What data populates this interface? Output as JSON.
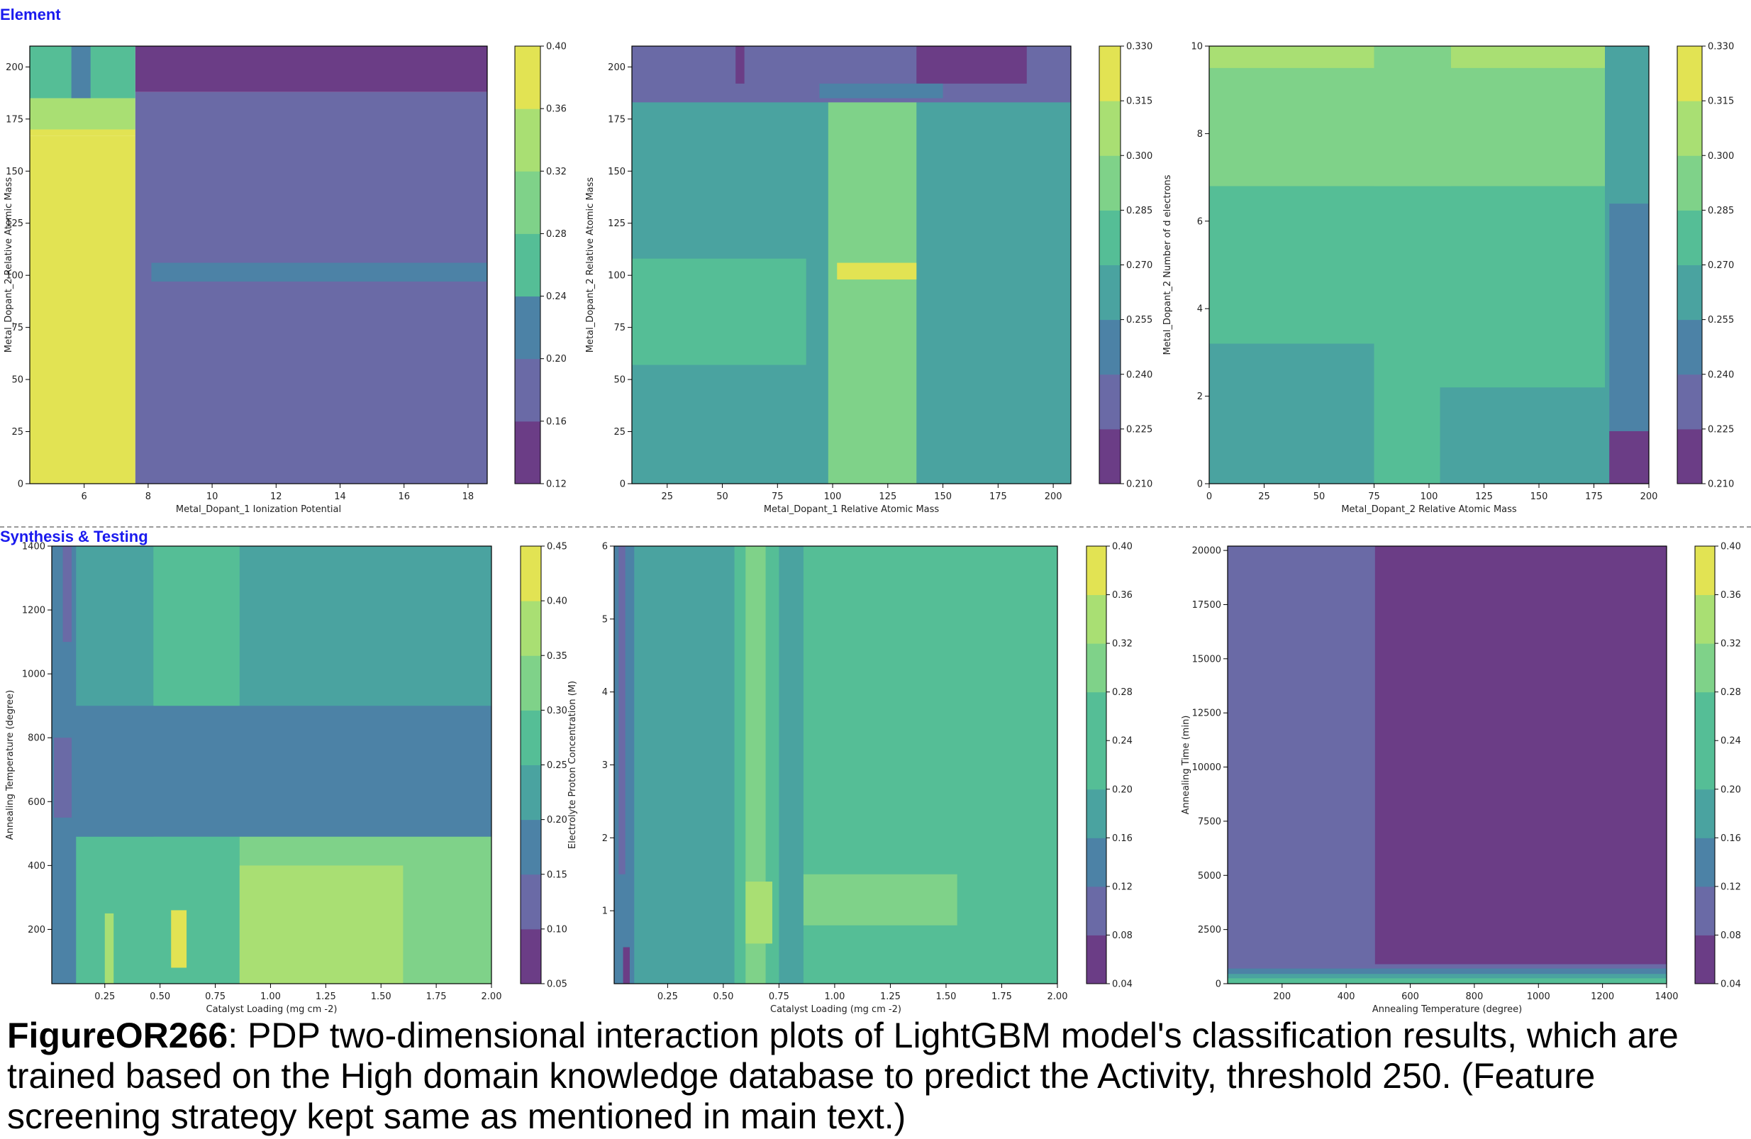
{
  "sections": {
    "top": "Element",
    "bottom": "Synthesis & Testing"
  },
  "caption": {
    "id": "FigureOR266",
    "text": ": PDP two-dimensional interaction plots of LightGBM model's classification results, which are trained based on the High domain knowledge database to predict the Activity, threshold 250. (Feature screening strategy kept same as mentioned in main text.)"
  },
  "colors": {
    "palette_low_to_high": [
      "#6b3d86",
      "#6a6aa6",
      "#4c82a6",
      "#4aa3a0",
      "#55be96",
      "#7fd289",
      "#a9df73",
      "#e2e353"
    ]
  },
  "chart_data": [
    {
      "type": "contour",
      "xlabel": "Metal_Dopant_1 Ionization Potential",
      "ylabel": "Metal_Dopant_2 Relative Atomic Mass",
      "xlim": [
        4.3,
        18.6
      ],
      "ylim": [
        0,
        210
      ],
      "xticks": [
        6,
        8,
        10,
        12,
        14,
        16,
        18
      ],
      "xticklabels": [
        "6",
        "8",
        "10",
        "12",
        "14",
        "16",
        "18"
      ],
      "yticks": [
        0,
        25,
        50,
        75,
        100,
        125,
        150,
        175,
        200
      ],
      "yticklabels": [
        "0",
        "25",
        "50",
        "75",
        "100",
        "125",
        "150",
        "175",
        "200"
      ],
      "colorbar": {
        "levels": [
          0.12,
          0.16,
          0.2,
          0.24,
          0.28,
          0.32,
          0.36,
          0.4
        ],
        "labels": [
          "0.12",
          "0.16",
          "0.20",
          "0.24",
          "0.28",
          "0.32",
          "0.36",
          "0.40"
        ]
      },
      "regions": [
        {
          "x": [
            4.3,
            7.6
          ],
          "y": [
            0,
            167
          ],
          "level": 7
        },
        {
          "x": [
            4.3,
            7.6
          ],
          "y": [
            167,
            170
          ],
          "level": 6
        },
        {
          "x": [
            4.3,
            7.6
          ],
          "y": [
            170,
            185
          ],
          "level": 5
        },
        {
          "x": [
            4.3,
            7.6
          ],
          "y": [
            185,
            210
          ],
          "level": 3
        },
        {
          "x": [
            5.6,
            6.2
          ],
          "y": [
            185,
            210
          ],
          "level": 2
        },
        {
          "x": [
            7.6,
            18.6
          ],
          "y": [
            0,
            188
          ],
          "level": 1
        },
        {
          "x": [
            7.6,
            18.6
          ],
          "y": [
            188,
            210
          ],
          "level": 0
        },
        {
          "x": [
            8.1,
            18.6
          ],
          "y": [
            97,
            106
          ],
          "level": 2
        }
      ]
    },
    {
      "type": "contour",
      "xlabel": "Metal_Dopant_1 Relative Atomic Mass",
      "ylabel": "Metal_Dopant_2 Relative Atomic Mass",
      "xlim": [
        9,
        208
      ],
      "ylim": [
        0,
        210
      ],
      "xticks": [
        25,
        50,
        75,
        100,
        125,
        150,
        175,
        200
      ],
      "xticklabels": [
        "25",
        "50",
        "75",
        "100",
        "125",
        "150",
        "175",
        "200"
      ],
      "yticks": [
        0,
        25,
        50,
        75,
        100,
        125,
        150,
        175,
        200
      ],
      "yticklabels": [
        "0",
        "25",
        "50",
        "75",
        "100",
        "125",
        "150",
        "175",
        "200"
      ],
      "colorbar": {
        "levels": [
          0.21,
          0.225,
          0.24,
          0.255,
          0.27,
          0.285,
          0.3,
          0.315,
          0.33
        ],
        "labels": [
          "0.210",
          "0.225",
          "0.240",
          "0.255",
          "0.270",
          "0.285",
          "0.300",
          "0.315",
          "0.330"
        ]
      },
      "regions": [
        {
          "x": [
            9,
            208
          ],
          "y": [
            0,
            210
          ],
          "level": 3
        },
        {
          "x": [
            9,
            88
          ],
          "y": [
            57,
            108
          ],
          "level": 4
        },
        {
          "x": [
            138,
            208
          ],
          "y": [
            100,
            108
          ],
          "level": 3
        },
        {
          "x": [
            98,
            138
          ],
          "y": [
            0,
            185
          ],
          "level": 5
        },
        {
          "x": [
            102,
            138
          ],
          "y": [
            98,
            106
          ],
          "level": 7
        },
        {
          "x": [
            9,
            208
          ],
          "y": [
            183,
            210
          ],
          "level": 1
        },
        {
          "x": [
            56,
            60
          ],
          "y": [
            192,
            210
          ],
          "level": 0
        },
        {
          "x": [
            138,
            188
          ],
          "y": [
            192,
            210
          ],
          "level": 0
        },
        {
          "x": [
            94,
            150
          ],
          "y": [
            185,
            192
          ],
          "level": 2
        }
      ]
    },
    {
      "type": "contour",
      "xlabel": "Metal_Dopant_2 Relative Atomic Mass",
      "ylabel": "Metal_Dopant_2 Number of d electrons",
      "xlim": [
        0,
        200
      ],
      "ylim": [
        0,
        10
      ],
      "xticks": [
        0,
        25,
        50,
        75,
        100,
        125,
        150,
        175,
        200
      ],
      "xticklabels": [
        "0",
        "25",
        "50",
        "75",
        "100",
        "125",
        "150",
        "175",
        "200"
      ],
      "yticks": [
        0,
        2,
        4,
        6,
        8,
        10
      ],
      "yticklabels": [
        "0",
        "2",
        "4",
        "6",
        "8",
        "10"
      ],
      "colorbar": {
        "levels": [
          0.21,
          0.225,
          0.24,
          0.255,
          0.27,
          0.285,
          0.3,
          0.315,
          0.33
        ],
        "labels": [
          "0.210",
          "0.225",
          "0.240",
          "0.255",
          "0.270",
          "0.285",
          "0.300",
          "0.315",
          "0.330"
        ]
      },
      "regions": [
        {
          "x": [
            0,
            200
          ],
          "y": [
            0,
            10
          ],
          "level": 4
        },
        {
          "x": [
            0,
            180
          ],
          "y": [
            6.8,
            10
          ],
          "level": 5
        },
        {
          "x": [
            0,
            180
          ],
          "y": [
            9.5,
            10
          ],
          "level": 6
        },
        {
          "x": [
            75,
            110
          ],
          "y": [
            6.8,
            10
          ],
          "level": 5
        },
        {
          "x": [
            0,
            75
          ],
          "y": [
            0,
            3.2
          ],
          "level": 3
        },
        {
          "x": [
            105,
            180
          ],
          "y": [
            0,
            2.2
          ],
          "level": 3
        },
        {
          "x": [
            180,
            200
          ],
          "y": [
            0,
            10
          ],
          "level": 3
        },
        {
          "x": [
            182,
            200
          ],
          "y": [
            0,
            6.4
          ],
          "level": 2
        },
        {
          "x": [
            182,
            200
          ],
          "y": [
            0,
            1.2
          ],
          "level": 0
        }
      ]
    },
    {
      "type": "contour",
      "xlabel": "Catalyst Loading (mg cm -2)",
      "ylabel": "Annealing Temperature (degree)",
      "xlim": [
        0.01,
        2.0
      ],
      "ylim": [
        30,
        1400
      ],
      "xticks": [
        0.25,
        0.5,
        0.75,
        1.0,
        1.25,
        1.5,
        1.75,
        2.0
      ],
      "xticklabels": [
        "0.25",
        "0.50",
        "0.75",
        "1.00",
        "1.25",
        "1.50",
        "1.75",
        "2.00"
      ],
      "yticks": [
        200,
        400,
        600,
        800,
        1000,
        1200,
        1400
      ],
      "yticklabels": [
        "200",
        "400",
        "600",
        "800",
        "1000",
        "1200",
        "1400"
      ],
      "colorbar": {
        "levels": [
          0.05,
          0.1,
          0.15,
          0.2,
          0.25,
          0.3,
          0.35,
          0.4,
          0.45
        ],
        "labels": [
          "0.05",
          "0.10",
          "0.15",
          "0.20",
          "0.25",
          "0.30",
          "0.35",
          "0.40",
          "0.45"
        ]
      },
      "regions": [
        {
          "x": [
            0.01,
            2.0
          ],
          "y": [
            30,
            1400
          ],
          "level": 3
        },
        {
          "x": [
            0.47,
            0.86
          ],
          "y": [
            30,
            1400
          ],
          "level": 4
        },
        {
          "x": [
            0.01,
            2.0
          ],
          "y": [
            490,
            900
          ],
          "level": 2
        },
        {
          "x": [
            0.01,
            2.0
          ],
          "y": [
            30,
            490
          ],
          "level": 4
        },
        {
          "x": [
            0.86,
            2.0
          ],
          "y": [
            30,
            490
          ],
          "level": 5
        },
        {
          "x": [
            0.86,
            1.6
          ],
          "y": [
            30,
            400
          ],
          "level": 6
        },
        {
          "x": [
            0.01,
            0.12
          ],
          "y": [
            30,
            1400
          ],
          "level": 2
        },
        {
          "x": [
            0.06,
            0.1
          ],
          "y": [
            1100,
            1400
          ],
          "level": 1
        },
        {
          "x": [
            0.02,
            0.1
          ],
          "y": [
            550,
            800
          ],
          "level": 1
        },
        {
          "x": [
            0.55,
            0.62
          ],
          "y": [
            80,
            260
          ],
          "level": 7
        },
        {
          "x": [
            0.25,
            0.29
          ],
          "y": [
            30,
            250
          ],
          "level": 6
        }
      ]
    },
    {
      "type": "contour",
      "xlabel": "Catalyst Loading (mg cm -2)",
      "ylabel": "Electrolyte Proton Concentration (M)",
      "xlim": [
        0.01,
        2.0
      ],
      "ylim": [
        0,
        6
      ],
      "xticks": [
        0.25,
        0.5,
        0.75,
        1.0,
        1.25,
        1.5,
        1.75,
        2.0
      ],
      "xticklabels": [
        "0.25",
        "0.50",
        "0.75",
        "1.00",
        "1.25",
        "1.50",
        "1.75",
        "2.00"
      ],
      "yticks": [
        1,
        2,
        3,
        4,
        5,
        6
      ],
      "yticklabels": [
        "1",
        "2",
        "3",
        "4",
        "5",
        "6"
      ],
      "colorbar": {
        "levels": [
          0.04,
          0.08,
          0.12,
          0.16,
          0.2,
          0.24,
          0.28,
          0.32,
          0.36,
          0.4
        ],
        "labels": [
          "0.04",
          "0.08",
          "0.12",
          "0.16",
          "0.20",
          "0.24",
          "0.28",
          "0.32",
          "0.36",
          "0.40"
        ]
      },
      "regions": [
        {
          "x": [
            0.01,
            2.0
          ],
          "y": [
            0,
            6
          ],
          "level": 4
        },
        {
          "x": [
            0.01,
            0.86
          ],
          "y": [
            0,
            6
          ],
          "level": 3
        },
        {
          "x": [
            0.55,
            0.75
          ],
          "y": [
            0,
            6
          ],
          "level": 5
        },
        {
          "x": [
            0.6,
            0.69
          ],
          "y": [
            0,
            6
          ],
          "level": 6
        },
        {
          "x": [
            0.86,
            2.0
          ],
          "y": [
            0,
            1.8
          ],
          "level": 5
        },
        {
          "x": [
            0.86,
            1.55
          ],
          "y": [
            0.8,
            1.5
          ],
          "level": 6
        },
        {
          "x": [
            0.6,
            0.72
          ],
          "y": [
            0.55,
            1.4
          ],
          "level": 7
        },
        {
          "x": [
            0.01,
            0.1
          ],
          "y": [
            0,
            6
          ],
          "level": 2
        },
        {
          "x": [
            0.03,
            0.06
          ],
          "y": [
            1.5,
            6
          ],
          "level": 1
        },
        {
          "x": [
            0.05,
            0.08
          ],
          "y": [
            0,
            0.5
          ],
          "level": 0
        }
      ]
    },
    {
      "type": "contour",
      "xlabel": "Annealing Temperature (degree)",
      "ylabel": "Annealing Time (min)",
      "xlim": [
        30,
        1400
      ],
      "ylim": [
        0,
        20200
      ],
      "xticks": [
        200,
        400,
        600,
        800,
        1000,
        1200,
        1400
      ],
      "xticklabels": [
        "200",
        "400",
        "600",
        "800",
        "1000",
        "1200",
        "1400"
      ],
      "yticks": [
        0,
        2500,
        5000,
        7500,
        10000,
        12500,
        15000,
        17500,
        20000
      ],
      "yticklabels": [
        "0",
        "2500",
        "5000",
        "7500",
        "10000",
        "12500",
        "15000",
        "17500",
        "20000"
      ],
      "colorbar": {
        "levels": [
          0.04,
          0.08,
          0.12,
          0.16,
          0.2,
          0.24,
          0.28,
          0.32,
          0.36,
          0.4
        ],
        "labels": [
          "0.04",
          "0.08",
          "0.12",
          "0.16",
          "0.20",
          "0.24",
          "0.28",
          "0.32",
          "0.36",
          "0.40"
        ]
      },
      "regions": [
        {
          "x": [
            30,
            1400
          ],
          "y": [
            0,
            20200
          ],
          "level": 1
        },
        {
          "x": [
            490,
            1400
          ],
          "y": [
            900,
            20200
          ],
          "level": 0
        },
        {
          "x": [
            30,
            1400
          ],
          "y": [
            0,
            700
          ],
          "level": 2
        },
        {
          "x": [
            30,
            1400
          ],
          "y": [
            0,
            450
          ],
          "level": 3
        },
        {
          "x": [
            30,
            1400
          ],
          "y": [
            0,
            250
          ],
          "level": 4
        },
        {
          "x": [
            30,
            1400
          ],
          "y": [
            0,
            100
          ],
          "level": 5
        }
      ]
    }
  ]
}
